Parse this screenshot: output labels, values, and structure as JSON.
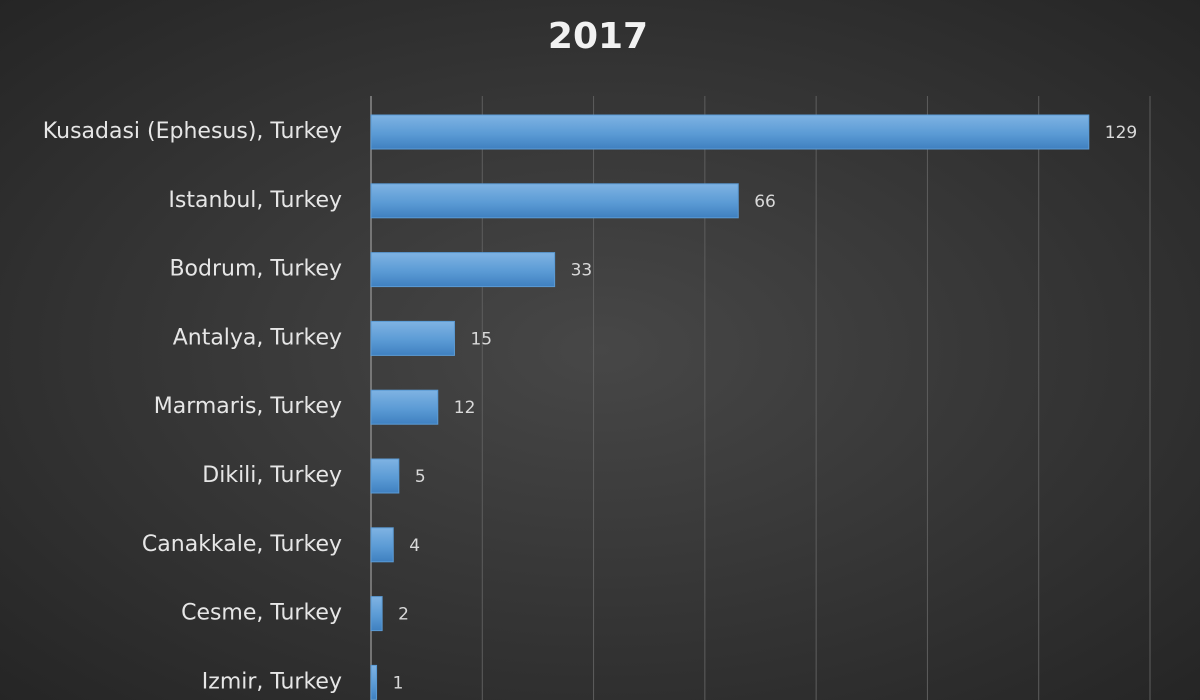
{
  "chart_data": {
    "type": "barh",
    "title": "2017",
    "categories": [
      "Kusadasi (Ephesus), Turkey",
      "Istanbul, Turkey",
      "Bodrum, Turkey",
      "Antalya, Turkey",
      "Marmaris, Turkey",
      "Dikili, Turkey",
      "Canakkale, Turkey",
      "Cesme, Turkey",
      "Izmir, Turkey"
    ],
    "values": [
      129,
      66,
      33,
      15,
      12,
      5,
      4,
      2,
      1
    ],
    "color": "#5b9bd5",
    "xlim": [
      0,
      140
    ],
    "xticks": [
      0,
      20,
      40,
      60,
      80,
      100,
      120,
      140
    ],
    "show_tick_labels": false,
    "grid": true,
    "data_labels": true
  }
}
